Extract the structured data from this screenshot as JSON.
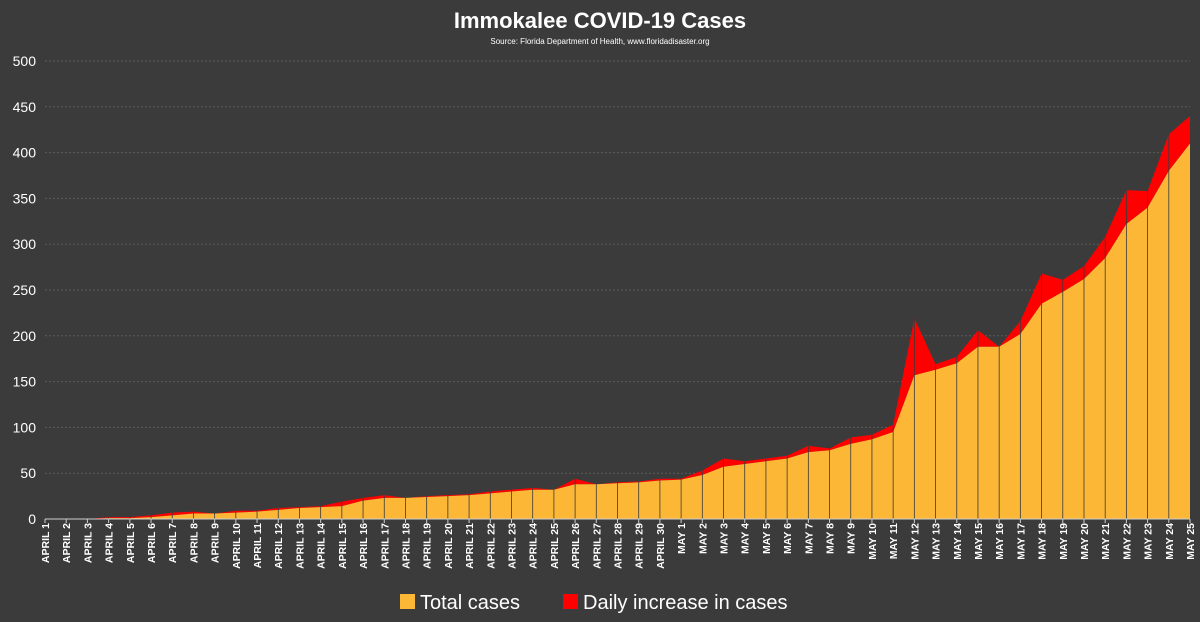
{
  "chart_data": {
    "type": "area",
    "title": "Immokalee COVID-19 Cases",
    "subtitle": "Source: Florida Department of Health, www.floridadisaster.org",
    "ylim": [
      0,
      500
    ],
    "yticks": [
      0,
      50,
      100,
      150,
      200,
      250,
      300,
      350,
      400,
      450,
      500
    ],
    "grid": true,
    "legend_position": "bottom",
    "categories": [
      "APRIL 1",
      "APRIL 2",
      "APRIL 3",
      "APRIL 4",
      "APRIL 5",
      "APRIL 6",
      "APRIL 7",
      "APRIL 8",
      "APRIL 9",
      "APRIL 10",
      "APRIL 11",
      "APRIL 12",
      "APRIL 13",
      "APRIL 14",
      "APRIL 15",
      "APRIL 16",
      "APRIL 17",
      "APRIL 18",
      "APRIL 19",
      "APRIL 20",
      "APRIL 21",
      "APRIL 22",
      "APRIL 23",
      "APRIL 24",
      "APRIL 25",
      "APRIL 26",
      "APRIL 27",
      "APRIL 28",
      "APRIL 29",
      "APRIL 30",
      "MAY 1",
      "MAY 2",
      "MAY 3",
      "MAY 4",
      "MAY 5",
      "MAY 6",
      "MAY 7",
      "MAY 8",
      "MAY 9",
      "MAY 10",
      "MAY 11",
      "MAY 12",
      "MAY 13",
      "MAY 14",
      "MAY 15",
      "MAY 16",
      "MAY 17",
      "MAY 18",
      "MAY 19",
      "MAY 20",
      "MAY 21",
      "MAY 22",
      "MAY 23",
      "MAY 24",
      "MAY 25"
    ],
    "series": [
      {
        "name": "Total cases",
        "color": "#fbb735",
        "values": [
          0,
          0,
          0,
          1,
          1,
          2,
          4,
          6,
          6,
          7,
          8,
          10,
          12,
          13,
          14,
          20,
          23,
          23,
          24,
          25,
          26,
          28,
          30,
          32,
          32,
          38,
          38,
          39,
          40,
          42,
          43,
          48,
          57,
          60,
          63,
          66,
          73,
          75,
          82,
          87,
          95,
          157,
          163,
          170,
          188,
          188,
          202,
          235,
          248,
          262,
          285,
          322,
          340,
          380,
          410
        ]
      },
      {
        "name": "Daily increase in cases",
        "color": "#ff0000",
        "values": [
          0,
          0,
          0,
          1,
          1,
          2,
          3,
          2,
          0,
          2,
          1,
          2,
          1,
          1,
          5,
          3,
          3,
          0,
          1,
          1,
          1,
          2,
          2,
          2,
          0,
          6,
          0,
          1,
          1,
          2,
          1,
          5,
          9,
          3,
          3,
          3,
          7,
          2,
          7,
          5,
          8,
          62,
          6,
          7,
          18,
          0,
          14,
          33,
          13,
          14,
          23,
          37,
          18,
          40,
          30
        ]
      }
    ]
  }
}
